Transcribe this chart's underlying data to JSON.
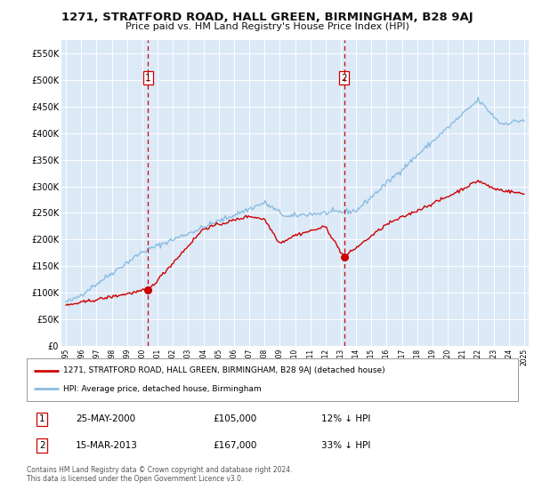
{
  "title": "1271, STRATFORD ROAD, HALL GREEN, BIRMINGHAM, B28 9AJ",
  "subtitle": "Price paid vs. HM Land Registry's House Price Index (HPI)",
  "legend_line1": "1271, STRATFORD ROAD, HALL GREEN, BIRMINGHAM, B28 9AJ (detached house)",
  "legend_line2": "HPI: Average price, detached house, Birmingham",
  "transaction1_date": "25-MAY-2000",
  "transaction1_price": "£105,000",
  "transaction1_hpi": "12% ↓ HPI",
  "transaction1_year": 2000.38,
  "transaction1_value": 105000,
  "transaction2_date": "15-MAR-2013",
  "transaction2_price": "£167,000",
  "transaction2_hpi": "33% ↓ HPI",
  "transaction2_year": 2013.21,
  "transaction2_value": 167000,
  "ylim": [
    0,
    575000
  ],
  "xlim_start": 1994.7,
  "xlim_end": 2025.3,
  "background_color": "#ffffff",
  "plot_bg_color": "#dce9f7",
  "grid_color": "#c8d8ea",
  "hpi_line_color": "#8bbde0",
  "price_line_color": "#cc0000",
  "marker_color": "#cc0000",
  "vline_color": "#cc0000",
  "footer_text": "Contains HM Land Registry data © Crown copyright and database right 2024.\nThis data is licensed under the Open Government Licence v3.0.",
  "yticks": [
    0,
    50000,
    100000,
    150000,
    200000,
    250000,
    300000,
    350000,
    400000,
    450000,
    500000,
    550000
  ],
  "ytick_labels": [
    "£0",
    "£50K",
    "£100K",
    "£150K",
    "£200K",
    "£250K",
    "£300K",
    "£350K",
    "£400K",
    "£450K",
    "£500K",
    "£550K"
  ],
  "xticks": [
    1995,
    1996,
    1997,
    1998,
    1999,
    2000,
    2001,
    2002,
    2003,
    2004,
    2005,
    2006,
    2007,
    2008,
    2009,
    2010,
    2011,
    2012,
    2013,
    2014,
    2015,
    2016,
    2017,
    2018,
    2019,
    2020,
    2021,
    2022,
    2023,
    2024,
    2025
  ]
}
